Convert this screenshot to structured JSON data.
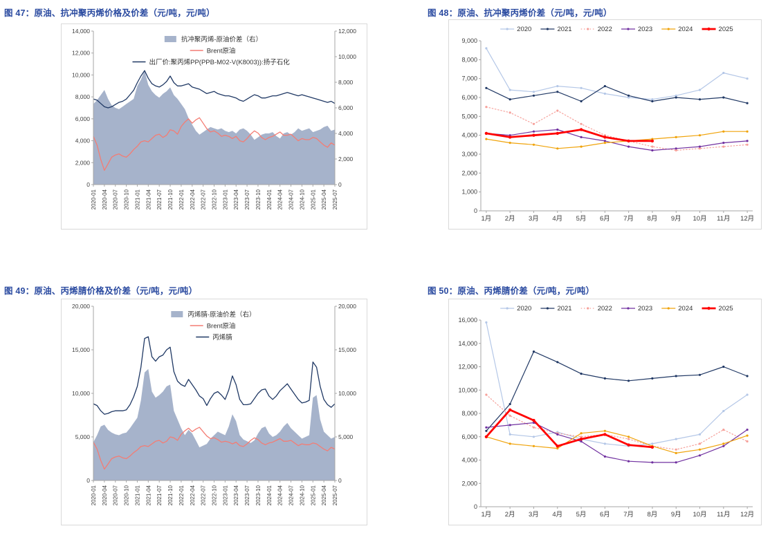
{
  "theme": {
    "title_color": "#2a4aa0",
    "axis_text_color": "#404040",
    "axis_line_color": "#a6a6a6",
    "box_border_color": "#d9d9d9",
    "background": "#ffffff"
  },
  "figures": [
    {
      "title": "图 47：原油、抗冲聚丙烯价格及价差（元/吨，元/吨）"
    },
    {
      "title": "图 48：原油、抗冲聚丙烯价差（元/吨，元/吨）"
    },
    {
      "title": "图 49：原油、丙烯腈价格及价差（元/吨，元/吨）"
    },
    {
      "title": "图 50：原油、丙烯腈价差（元/吨，元/吨）"
    }
  ],
  "chart_data": [
    {
      "type": "area+line",
      "title": "图 47：原油、抗冲聚丙烯价格及价差（元/吨，元/吨）",
      "left_ylim": [
        0,
        14000
      ],
      "left_tick_step": 2000,
      "right_ylim": [
        0,
        12000
      ],
      "right_tick_step": 2000,
      "x_tick_every": 3,
      "x_tick_labels": [
        "2020-01",
        "2020-04",
        "2020-07",
        "2020-10",
        "2021-01",
        "2021-04",
        "2021-07",
        "2021-10",
        "2022-01",
        "2022-04",
        "2022-07",
        "2022-10",
        "2023-01",
        "2023-04",
        "2023-07",
        "2023-10",
        "2024-01",
        "2024-04",
        "2024-07",
        "2024-10",
        "2025-01",
        "2025-04",
        "2025-07"
      ],
      "area_series": {
        "name": "抗冲聚丙烯-原油价差（右）",
        "axis": "right",
        "color": "#a6b3cb",
        "values": [
          6300,
          6600,
          7000,
          7400,
          6700,
          6200,
          6000,
          5900,
          6100,
          6300,
          6500,
          6700,
          7700,
          8200,
          8900,
          7800,
          7300,
          7000,
          6800,
          7100,
          7300,
          7600,
          7000,
          6700,
          6300,
          5900,
          5200,
          4700,
          4200,
          3900,
          4100,
          4300,
          4500,
          4400,
          4300,
          4400,
          4200,
          4100,
          4200,
          4000,
          4300,
          4400,
          4200,
          3900,
          3500,
          3700,
          3900,
          4000,
          4000,
          4100,
          3800,
          3600,
          4000,
          4100,
          3900,
          4100,
          4400,
          4200,
          4300,
          4400,
          4100,
          4200,
          4300,
          4500,
          4600,
          4200,
          4300
        ]
      },
      "line_series": [
        {
          "name": "Brent原油",
          "axis": "left",
          "color": "#f47c73",
          "width": 1.3,
          "values": [
            4400,
            3600,
            2300,
            1300,
            1900,
            2500,
            2700,
            2800,
            2600,
            2500,
            2800,
            3200,
            3500,
            3900,
            4000,
            3900,
            4200,
            4500,
            4600,
            4300,
            4500,
            5000,
            4900,
            4600,
            5300,
            5700,
            6000,
            5600,
            5900,
            6100,
            5600,
            5100,
            4800,
            4900,
            4700,
            4400,
            4500,
            4400,
            4200,
            4400,
            4000,
            3900,
            4200,
            4600,
            4900,
            4700,
            4300,
            4100,
            4300,
            4400,
            4600,
            4800,
            4500,
            4500,
            4600,
            4300,
            4000,
            4200,
            4100,
            4100,
            4300,
            4200,
            3900,
            3600,
            3400,
            3800,
            3600
          ]
        },
        {
          "name": "出厂价:聚丙烯PP(PPB-M02-V(K8003)):扬子石化",
          "axis": "left",
          "color": "#1f3864",
          "width": 1.3,
          "values": [
            7800,
            7700,
            7400,
            7100,
            7000,
            7100,
            7300,
            7500,
            7600,
            7800,
            8200,
            8600,
            9300,
            9900,
            10400,
            9700,
            9200,
            9000,
            8900,
            9100,
            9400,
            9900,
            9300,
            9000,
            9000,
            9100,
            9200,
            8900,
            8800,
            8700,
            8500,
            8300,
            8400,
            8500,
            8300,
            8200,
            8100,
            8100,
            8000,
            7900,
            7700,
            7600,
            7800,
            8000,
            8200,
            8100,
            7900,
            7900,
            8000,
            8100,
            8100,
            8200,
            8300,
            8400,
            8300,
            8200,
            8100,
            8200,
            8100,
            8000,
            7900,
            7800,
            7700,
            7600,
            7500,
            7600,
            7400
          ]
        }
      ]
    },
    {
      "type": "year-lines",
      "title": "图 48：原油、抗冲聚丙烯价差（元/吨，元/吨）",
      "ylim": [
        0,
        9000
      ],
      "ytick_step": 1000,
      "categories": [
        "1月",
        "2月",
        "3月",
        "4月",
        "5月",
        "6月",
        "7月",
        "8月",
        "9月",
        "10月",
        "11月",
        "12月"
      ],
      "series": [
        {
          "name": "2020",
          "color": "#b4c7e7",
          "values": [
            8600,
            6400,
            6300,
            6600,
            6500,
            6200,
            6000,
            5900,
            6100,
            6400,
            7300,
            7000
          ]
        },
        {
          "name": "2021",
          "color": "#203864",
          "values": [
            6500,
            5900,
            6100,
            6300,
            5800,
            6600,
            6100,
            5800,
            6000,
            5900,
            6000,
            5700
          ]
        },
        {
          "name": "2022",
          "color": "#f6a09a",
          "style": "dotted",
          "values": [
            5500,
            5200,
            4600,
            5300,
            4600,
            4000,
            3700,
            3400,
            3200,
            3300,
            3400,
            3500
          ]
        },
        {
          "name": "2023",
          "color": "#7030a0",
          "values": [
            4100,
            4000,
            4200,
            4300,
            3900,
            3700,
            3400,
            3200,
            3300,
            3400,
            3600,
            3700
          ]
        },
        {
          "name": "2024",
          "color": "#f0a30a",
          "values": [
            3800,
            3600,
            3500,
            3300,
            3400,
            3600,
            3700,
            3800,
            3900,
            4000,
            4200,
            4200
          ]
        },
        {
          "name": "2025",
          "color": "#ff0000",
          "width": 2.8,
          "values": [
            4100,
            3900,
            4000,
            4100,
            4300,
            3900,
            3700,
            3700
          ]
        }
      ]
    },
    {
      "type": "area+line",
      "title": "图 49：原油、丙烯腈价格及价差（元/吨，元/吨）",
      "left_ylim": [
        0,
        20000
      ],
      "left_tick_step": 5000,
      "right_ylim": [
        0,
        20000
      ],
      "right_tick_step": 5000,
      "x_tick_every": 3,
      "x_tick_labels": [
        "2020-01",
        "2020-04",
        "2020-07",
        "2020-10",
        "2021-01",
        "2021-04",
        "2021-07",
        "2021-10",
        "2022-01",
        "2022-04",
        "2022-07",
        "2022-10",
        "2023-01",
        "2023-04",
        "2023-07",
        "2023-10",
        "2024-01",
        "2024-04",
        "2024-07",
        "2024-10",
        "2025-01",
        "2025-04",
        "2025-07"
      ],
      "area_series": {
        "name": "丙烯腈-原油价差（右）",
        "axis": "right",
        "color": "#a6b3cb",
        "values": [
          4400,
          5200,
          6200,
          6400,
          5800,
          5500,
          5300,
          5200,
          5400,
          5500,
          6000,
          6600,
          7200,
          9200,
          12400,
          12800,
          10200,
          9500,
          9800,
          10200,
          10800,
          11000,
          8000,
          7000,
          6000,
          5200,
          5800,
          5400,
          4600,
          3800,
          4000,
          4200,
          4800,
          5200,
          5600,
          5400,
          5200,
          6200,
          7600,
          6800,
          5200,
          4700,
          4500,
          4300,
          4600,
          5400,
          6000,
          6200,
          5400,
          5000,
          5200,
          5600,
          6200,
          6600,
          6000,
          5600,
          5200,
          4800,
          5000,
          5200,
          9500,
          9800,
          7000,
          5600,
          5200,
          4800,
          5000
        ]
      },
      "line_series": [
        {
          "name": "Brent原油",
          "axis": "left",
          "color": "#f47c73",
          "width": 1.3,
          "values": [
            4400,
            3600,
            2300,
            1300,
            1900,
            2500,
            2700,
            2800,
            2600,
            2500,
            2800,
            3200,
            3500,
            3900,
            4000,
            3900,
            4200,
            4500,
            4600,
            4300,
            4500,
            5000,
            4900,
            4600,
            5300,
            5700,
            6000,
            5600,
            5900,
            6100,
            5600,
            5100,
            4800,
            4900,
            4700,
            4400,
            4500,
            4400,
            4200,
            4400,
            4000,
            3900,
            4200,
            4600,
            4900,
            4700,
            4300,
            4100,
            4300,
            4400,
            4600,
            4800,
            4500,
            4500,
            4600,
            4300,
            4000,
            4200,
            4100,
            4100,
            4300,
            4200,
            3900,
            3600,
            3400,
            3800,
            3600
          ]
        },
        {
          "name": "丙烯腈",
          "axis": "left",
          "color": "#1f3864",
          "width": 1.3,
          "values": [
            8800,
            8600,
            8000,
            7600,
            7700,
            7900,
            8000,
            8000,
            8000,
            8100,
            8700,
            9600,
            10800,
            13000,
            16300,
            16500,
            14200,
            13700,
            14200,
            14400,
            15000,
            15300,
            12500,
            11400,
            11000,
            10800,
            11600,
            11000,
            10400,
            9700,
            9400,
            8600,
            9400,
            10000,
            10200,
            9800,
            9300,
            10400,
            12000,
            11000,
            9300,
            8700,
            8700,
            8800,
            9400,
            10000,
            10400,
            10500,
            9700,
            9300,
            9700,
            10300,
            10700,
            11100,
            10500,
            9900,
            9300,
            8900,
            9000,
            9200,
            13600,
            13000,
            10800,
            9300,
            8700,
            8400,
            8800
          ]
        }
      ]
    },
    {
      "type": "year-lines",
      "title": "图 50：原油、丙烯腈价差（元/吨，元/吨）",
      "ylim": [
        0,
        16000
      ],
      "ytick_step": 2000,
      "categories": [
        "1月",
        "2月",
        "3月",
        "4月",
        "5月",
        "6月",
        "7月",
        "8月",
        "9月",
        "10月",
        "11月",
        "12月"
      ],
      "series": [
        {
          "name": "2020",
          "color": "#b4c7e7",
          "values": [
            15800,
            6200,
            6000,
            6400,
            5800,
            5400,
            5200,
            5400,
            5800,
            6200,
            8200,
            9600
          ]
        },
        {
          "name": "2021",
          "color": "#203864",
          "values": [
            6500,
            8800,
            13300,
            12400,
            11400,
            11000,
            10800,
            11000,
            11200,
            11300,
            12000,
            11200
          ]
        },
        {
          "name": "2022",
          "color": "#f6a09a",
          "style": "dotted",
          "values": [
            9600,
            7800,
            6800,
            6300,
            6000,
            6200,
            5800,
            5200,
            4900,
            5400,
            6600,
            5600
          ]
        },
        {
          "name": "2023",
          "color": "#7030a0",
          "values": [
            6800,
            7000,
            7200,
            6200,
            5600,
            4300,
            3900,
            3800,
            3800,
            4400,
            5200,
            6600
          ]
        },
        {
          "name": "2024",
          "color": "#f0a30a",
          "values": [
            6000,
            5400,
            5200,
            5000,
            6300,
            6500,
            6000,
            5200,
            4600,
            4900,
            5400,
            6100
          ]
        },
        {
          "name": "2025",
          "color": "#ff0000",
          "width": 2.8,
          "values": [
            6000,
            8300,
            7400,
            5200,
            5800,
            6200,
            5300,
            5100
          ]
        }
      ]
    }
  ]
}
